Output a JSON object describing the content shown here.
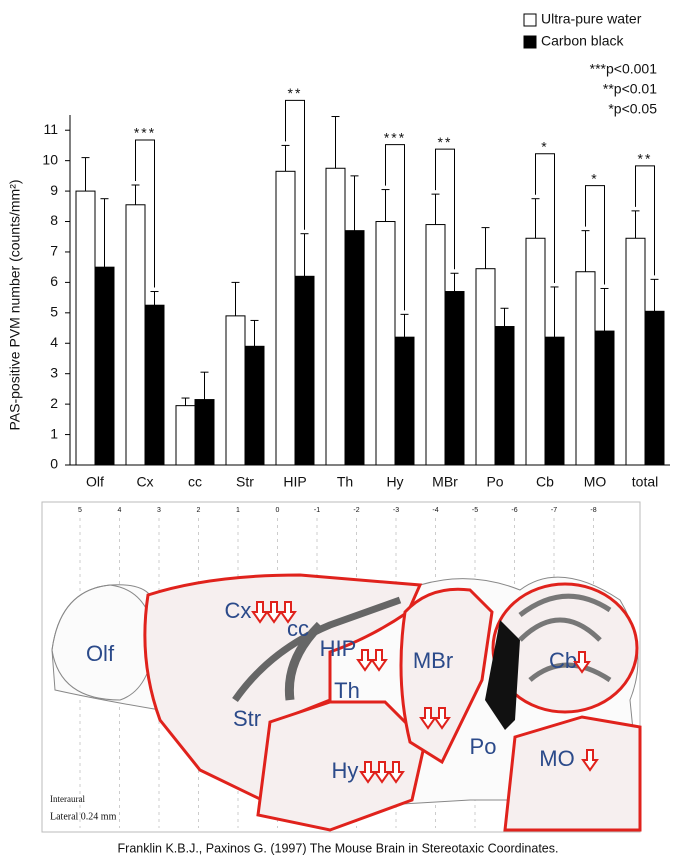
{
  "chart_data": {
    "type": "bar",
    "y_label": "PAS-positive PVM number (counts/mm²)",
    "categories": [
      "Olf",
      "Cx",
      "cc",
      "Str",
      "HIP",
      "Th",
      "Hy",
      "MBr",
      "Po",
      "Cb",
      "MO",
      "total"
    ],
    "series": [
      {
        "name": "Ultra-pure water",
        "color": "#ffffff",
        "values": [
          9.0,
          8.55,
          1.95,
          4.9,
          9.65,
          9.75,
          8.0,
          7.9,
          6.45,
          7.45,
          6.35,
          7.45
        ],
        "errors": [
          1.1,
          0.65,
          0.25,
          1.1,
          0.85,
          1.7,
          1.05,
          1.0,
          1.35,
          1.3,
          1.35,
          0.9
        ]
      },
      {
        "name": "Carbon black",
        "color": "#000000",
        "values": [
          6.5,
          5.25,
          2.15,
          3.9,
          6.2,
          7.7,
          4.2,
          5.7,
          4.55,
          4.2,
          4.4,
          5.05
        ],
        "errors": [
          2.25,
          0.45,
          0.9,
          0.85,
          1.4,
          1.8,
          0.75,
          0.6,
          0.6,
          1.65,
          1.4,
          1.05
        ]
      }
    ],
    "significance": [
      null,
      "***",
      null,
      null,
      "**",
      null,
      "***",
      "**",
      null,
      "*",
      "*",
      "**"
    ],
    "p_notes": [
      "***p<0.001",
      "**p<0.01",
      "*p<0.05"
    ],
    "ylim": [
      0,
      11.5
    ],
    "yticks": [
      0,
      1,
      2,
      3,
      4,
      5,
      6,
      7,
      8,
      9,
      10,
      11
    ]
  },
  "diagram": {
    "scale": [
      "5",
      "4",
      "3",
      "2",
      "1",
      "0",
      "-1",
      "-2",
      "-3",
      "-4",
      "-5",
      "-6",
      "-7",
      "-8"
    ],
    "regions": [
      "Olf",
      "Cx",
      "cc",
      "HIP",
      "Th",
      "Str",
      "MBr",
      "Po",
      "Hy",
      "Cb",
      "MO"
    ],
    "interaural": "Interaural",
    "lateral": "Lateral 0.24 mm",
    "caption": "Franklin K.B.J., Paxinos G. (1997) The Mouse Brain in Stereotaxic Coordinates."
  }
}
